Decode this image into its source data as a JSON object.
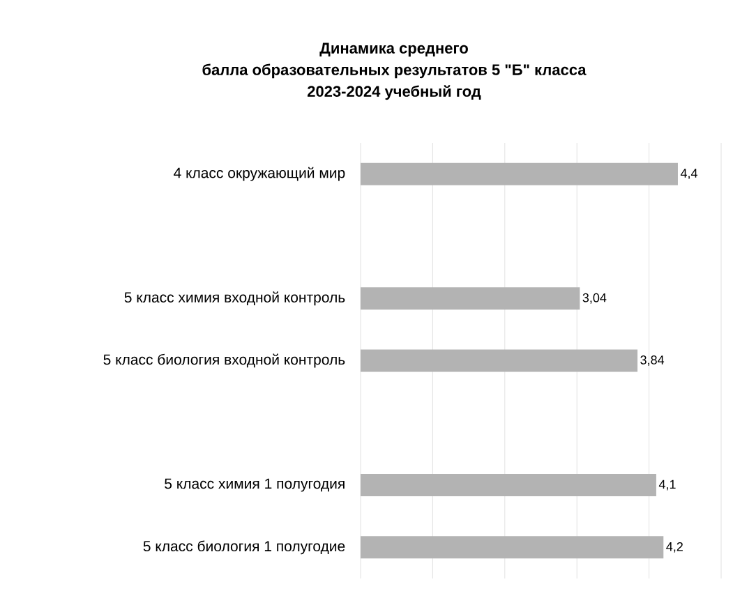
{
  "chart_data": {
    "type": "bar",
    "orientation": "horizontal",
    "title": "Динамика среднего балла образовательных результатов 5 \"Б\" класса 2023-2024 учебный год",
    "categories": [
      "4 класс окружающий мир",
      null,
      "5 класс химия входной контроль",
      "5 класс биология входной контроль",
      null,
      "5 класс химия 1 полугодия",
      "5 класс биология 1 полугодие"
    ],
    "values": [
      4.4,
      null,
      3.04,
      3.84,
      null,
      4.1,
      4.2
    ],
    "value_labels": [
      "4,4",
      null,
      "3,04",
      "3,84",
      null,
      "4,1",
      "4,2"
    ],
    "color": "#b3b3b3",
    "xlim": [
      0,
      5
    ],
    "xticks": [
      {
        "value": 0,
        "label": null
      },
      {
        "value": 1,
        "label": null
      },
      {
        "value": 2,
        "label": null
      },
      {
        "value": 3,
        "label": null
      },
      {
        "value": 4,
        "label": null
      },
      {
        "value": 5,
        "label": null
      }
    ],
    "grid": "x",
    "tick_labels": "y"
  }
}
